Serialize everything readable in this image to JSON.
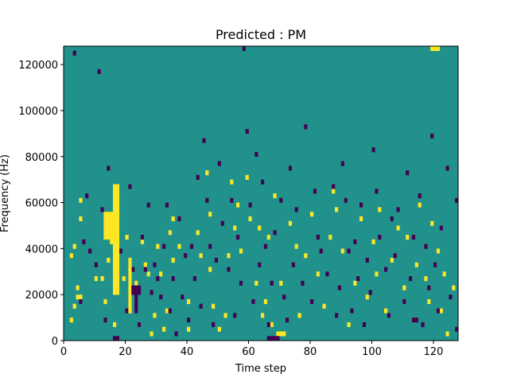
{
  "chart_data": {
    "type": "heatmap",
    "title": "Predicted : PM",
    "xlabel": "Time step",
    "ylabel": "Frequency (Hz)",
    "xlim": [
      0,
      128
    ],
    "ylim": [
      0,
      128000
    ],
    "xticks": [
      0,
      20,
      40,
      60,
      80,
      100,
      120
    ],
    "yticks": [
      0,
      20000,
      40000,
      60000,
      80000,
      100000,
      120000
    ],
    "ytick_labels": [
      "0",
      "20000",
      "40000",
      "60000",
      "80000",
      "100000",
      "120000"
    ],
    "grid": false,
    "colormap": "viridis",
    "colors": {
      "background": "#21918c",
      "high": "#fde725",
      "low": "#440154"
    },
    "bin_height_hz": 2000,
    "high_cells": [
      [
        2,
        4
      ],
      [
        3,
        7
      ],
      [
        4,
        9
      ],
      [
        5,
        9
      ],
      [
        4,
        11
      ],
      [
        2,
        18
      ],
      [
        3,
        20
      ],
      [
        5,
        26
      ],
      [
        5,
        30
      ],
      [
        10,
        13
      ],
      [
        12,
        13
      ],
      [
        13,
        8
      ],
      [
        14,
        17
      ],
      [
        15,
        21
      ],
      [
        15,
        24
      ],
      [
        16,
        3
      ],
      [
        17,
        14
      ],
      [
        19,
        13
      ],
      [
        20,
        22
      ],
      [
        21,
        6
      ],
      [
        23,
        12
      ],
      [
        24,
        3
      ],
      [
        25,
        21
      ],
      [
        26,
        16
      ],
      [
        27,
        14
      ],
      [
        28,
        1
      ],
      [
        29,
        5
      ],
      [
        30,
        20
      ],
      [
        31,
        14
      ],
      [
        32,
        2
      ],
      [
        33,
        6
      ],
      [
        34,
        23
      ],
      [
        35,
        26
      ],
      [
        35,
        17
      ],
      [
        37,
        20
      ],
      [
        40,
        8
      ],
      [
        40,
        2
      ],
      [
        43,
        23
      ],
      [
        44,
        18
      ],
      [
        46,
        36
      ],
      [
        47,
        27
      ],
      [
        47,
        15
      ],
      [
        48,
        7
      ],
      [
        50,
        2
      ],
      [
        52,
        5
      ],
      [
        53,
        18
      ],
      [
        54,
        34
      ],
      [
        55,
        24
      ],
      [
        56,
        29
      ],
      [
        57,
        19
      ],
      [
        59,
        35
      ],
      [
        60,
        26
      ],
      [
        62,
        12
      ],
      [
        63,
        24
      ],
      [
        64,
        5
      ],
      [
        65,
        8
      ],
      [
        66,
        22
      ],
      [
        67,
        3
      ],
      [
        68,
        31
      ],
      [
        70,
        12
      ],
      [
        73,
        25
      ],
      [
        75,
        20
      ],
      [
        76,
        5
      ],
      [
        78,
        18
      ],
      [
        80,
        27
      ],
      [
        82,
        14
      ],
      [
        84,
        7
      ],
      [
        86,
        22
      ],
      [
        87,
        32
      ],
      [
        88,
        28
      ],
      [
        90,
        19
      ],
      [
        92,
        3
      ],
      [
        94,
        12
      ],
      [
        96,
        26
      ],
      [
        98,
        9
      ],
      [
        100,
        21
      ],
      [
        101,
        14
      ],
      [
        102,
        28
      ],
      [
        104,
        6
      ],
      [
        106,
        17
      ],
      [
        108,
        24
      ],
      [
        110,
        11
      ],
      [
        111,
        22
      ],
      [
        113,
        4
      ],
      [
        114,
        16
      ],
      [
        115,
        29
      ],
      [
        117,
        13
      ],
      [
        118,
        8
      ],
      [
        119,
        25
      ],
      [
        121,
        19
      ],
      [
        122,
        6
      ],
      [
        123,
        14
      ],
      [
        124,
        1
      ],
      [
        126,
        11
      ]
    ],
    "high_blocks": [
      [
        16,
        10,
        2,
        24
      ],
      [
        13,
        22,
        3,
        6
      ],
      [
        21,
        6,
        1,
        12
      ],
      [
        119,
        63,
        3,
        1
      ],
      [
        69,
        1,
        3,
        1
      ]
    ],
    "low_cells": [
      [
        3,
        62
      ],
      [
        5,
        8
      ],
      [
        6,
        21
      ],
      [
        7,
        31
      ],
      [
        8,
        19
      ],
      [
        10,
        16
      ],
      [
        11,
        58
      ],
      [
        12,
        28
      ],
      [
        13,
        4
      ],
      [
        14,
        37
      ],
      [
        15,
        26
      ],
      [
        16,
        12
      ],
      [
        18,
        19
      ],
      [
        20,
        6
      ],
      [
        21,
        33
      ],
      [
        22,
        15
      ],
      [
        23,
        9
      ],
      [
        24,
        3
      ],
      [
        25,
        22
      ],
      [
        26,
        15
      ],
      [
        27,
        29
      ],
      [
        28,
        10
      ],
      [
        29,
        16
      ],
      [
        30,
        13
      ],
      [
        31,
        9
      ],
      [
        32,
        20
      ],
      [
        33,
        29
      ],
      [
        34,
        6
      ],
      [
        35,
        13
      ],
      [
        36,
        1
      ],
      [
        37,
        26
      ],
      [
        38,
        9
      ],
      [
        39,
        18
      ],
      [
        40,
        4
      ],
      [
        41,
        20
      ],
      [
        42,
        13
      ],
      [
        43,
        35
      ],
      [
        44,
        7
      ],
      [
        45,
        43
      ],
      [
        46,
        30
      ],
      [
        47,
        20
      ],
      [
        48,
        3
      ],
      [
        49,
        17
      ],
      [
        50,
        38
      ],
      [
        51,
        25
      ],
      [
        53,
        15
      ],
      [
        54,
        30
      ],
      [
        55,
        5
      ],
      [
        56,
        22
      ],
      [
        57,
        12
      ],
      [
        58,
        63
      ],
      [
        59,
        45
      ],
      [
        60,
        29
      ],
      [
        61,
        8
      ],
      [
        62,
        40
      ],
      [
        63,
        16
      ],
      [
        64,
        34
      ],
      [
        65,
        20
      ],
      [
        66,
        3
      ],
      [
        67,
        12
      ],
      [
        68,
        23
      ],
      [
        70,
        30
      ],
      [
        71,
        9
      ],
      [
        72,
        4
      ],
      [
        73,
        37
      ],
      [
        74,
        16
      ],
      [
        75,
        28
      ],
      [
        77,
        12
      ],
      [
        78,
        46
      ],
      [
        80,
        8
      ],
      [
        81,
        32
      ],
      [
        82,
        22
      ],
      [
        83,
        19
      ],
      [
        85,
        14
      ],
      [
        87,
        33
      ],
      [
        88,
        5
      ],
      [
        89,
        11
      ],
      [
        90,
        38
      ],
      [
        91,
        30
      ],
      [
        92,
        19
      ],
      [
        93,
        6
      ],
      [
        94,
        21
      ],
      [
        95,
        13
      ],
      [
        96,
        29
      ],
      [
        97,
        3
      ],
      [
        98,
        17
      ],
      [
        99,
        10
      ],
      [
        100,
        41
      ],
      [
        101,
        32
      ],
      [
        102,
        22
      ],
      [
        104,
        15
      ],
      [
        105,
        5
      ],
      [
        106,
        26
      ],
      [
        107,
        18
      ],
      [
        108,
        28
      ],
      [
        110,
        8
      ],
      [
        111,
        36
      ],
      [
        112,
        13
      ],
      [
        113,
        22
      ],
      [
        115,
        31
      ],
      [
        116,
        3
      ],
      [
        117,
        20
      ],
      [
        118,
        11
      ],
      [
        119,
        44
      ],
      [
        120,
        16
      ],
      [
        121,
        6
      ],
      [
        122,
        24
      ],
      [
        124,
        37
      ],
      [
        125,
        9
      ],
      [
        127,
        30
      ],
      [
        127,
        2
      ]
    ],
    "low_blocks": [
      [
        16,
        0,
        2,
        1
      ],
      [
        66,
        0,
        4,
        1
      ],
      [
        22,
        10,
        3,
        2
      ],
      [
        113,
        4,
        2,
        1
      ],
      [
        23,
        6,
        1,
        3
      ]
    ]
  }
}
